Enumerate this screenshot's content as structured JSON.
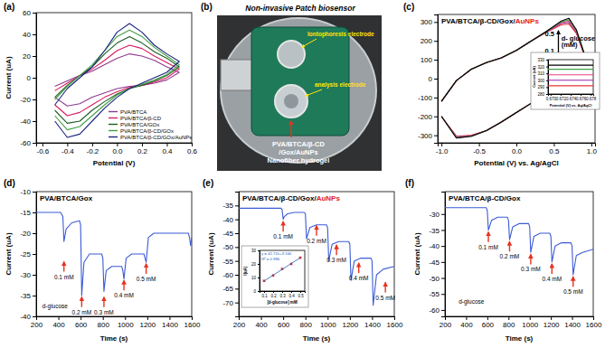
{
  "chart_data": [
    {
      "type": "line",
      "label": "(a)",
      "xlabel": "Potential (V)",
      "ylabel": "Current (uA)",
      "xlim": [
        -0.65,
        0.6
      ],
      "xticks": [
        -0.6,
        -0.4,
        -0.2,
        {
          "value": 0,
          "label": "0.0"
        },
        0.2,
        0.4,
        0.6
      ],
      "ylim": [
        -60,
        60
      ],
      "yticks": [
        -60,
        -40,
        -20,
        0,
        20,
        40,
        60
      ],
      "legend": "lower right",
      "x": [
        -0.5,
        -0.4,
        -0.3,
        -0.2,
        -0.1,
        0,
        0.1,
        0.2,
        0.3,
        0.4,
        0.5,
        0.4,
        0.3,
        0.2,
        0.1,
        0,
        -0.1,
        -0.2,
        -0.3,
        -0.4,
        -0.5
      ],
      "series": [
        {
          "name": "PVA/BTCA",
          "color": "#8e3b8e",
          "values": [
            -8,
            -3,
            2,
            6,
            12,
            18,
            22,
            20,
            16,
            10,
            5,
            -2,
            -5,
            -7,
            -8,
            -10,
            -14,
            -18,
            -24,
            -26,
            -18
          ]
        },
        {
          "name": "PVA/BTCA/β-CD",
          "color": "#d81b60",
          "values": [
            -12,
            -5,
            2,
            8,
            16,
            25,
            30,
            27,
            20,
            14,
            8,
            0,
            -4,
            -7,
            -9,
            -13,
            -18,
            -25,
            -32,
            -35,
            -25
          ]
        },
        {
          "name": "PVA/BTCA/GOx",
          "color": "#1b5e20",
          "values": [
            -18,
            -7,
            2,
            10,
            22,
            32,
            38,
            32,
            24,
            18,
            10,
            2,
            -3,
            -7,
            -10,
            -15,
            -22,
            -30,
            -40,
            -42,
            -30
          ]
        },
        {
          "name": "PVA/BTCA/β-CD/GOx",
          "color": "#43a047",
          "values": [
            -20,
            -8,
            2,
            12,
            25,
            38,
            44,
            38,
            28,
            20,
            12,
            3,
            -2,
            -6,
            -10,
            -16,
            -25,
            -35,
            -45,
            -48,
            -35
          ]
        },
        {
          "name": "PVA/BTCA/β-CD/GOx/AuNPs",
          "color": "#1a237e",
          "values": [
            -25,
            -10,
            0,
            10,
            25,
            42,
            50,
            42,
            30,
            22,
            15,
            5,
            0,
            -5,
            -10,
            -18,
            -28,
            -40,
            -52,
            -55,
            -40
          ]
        }
      ]
    },
    {
      "type": "image",
      "label": "(b)",
      "title": "Non-invasive Patch biosensor",
      "annotations": [
        "Iontophoresis electrode",
        "analysis electrode",
        "PVA/BTCA/β-CD",
        "/Gox/AuNPs",
        "Nanofiber hydrogel"
      ]
    },
    {
      "type": "line",
      "label": "(c)",
      "title": "PVA/BTCA/β-CD/Gox/AuNPs",
      "xlabel": "Potential (V) vs. Ag/AgCl",
      "xlim": [
        -1.05,
        1.05
      ],
      "xticks": [
        {
          "value": -1,
          "label": "-1.0"
        },
        -0.5,
        {
          "value": 0,
          "label": "0.0"
        },
        0.5,
        {
          "value": 1,
          "label": "1.0"
        }
      ],
      "ylim": [
        -340,
        340
      ],
      "yticks": [
        -300,
        -200,
        -100,
        0,
        100,
        200,
        300
      ],
      "x": [
        -1,
        -0.8,
        -0.6,
        -0.4,
        -0.2,
        0,
        0.2,
        0.4,
        0.6,
        0.7,
        0.8,
        0.9,
        0.8,
        0.6,
        0.4,
        0.2,
        0,
        -0.2,
        -0.4,
        -0.6,
        -0.8,
        -1
      ],
      "series": [
        {
          "color": "#e53935",
          "values": [
            -120,
            -10,
            50,
            85,
            110,
            150,
            200,
            245,
            285,
            290,
            240,
            130,
            40,
            -10,
            -70,
            -130,
            -180,
            -230,
            -275,
            -300,
            -305,
            -200
          ]
        },
        {
          "color": "#9c27b0",
          "values": [
            -120,
            -10,
            50,
            85,
            110,
            150,
            200,
            246,
            292,
            298,
            246,
            133,
            40,
            -10,
            -70,
            -130,
            -180,
            -230,
            -275,
            -302,
            -308,
            -200
          ]
        },
        {
          "color": "#ec407a",
          "values": [
            -120,
            -10,
            50,
            85,
            110,
            150,
            200,
            248,
            296,
            305,
            250,
            135,
            40,
            -10,
            -70,
            -130,
            -180,
            -230,
            -275,
            -304,
            -311,
            -200
          ]
        },
        {
          "color": "#43a047",
          "values": [
            -120,
            -10,
            50,
            85,
            110,
            150,
            200,
            250,
            300,
            312,
            255,
            138,
            40,
            -10,
            -70,
            -130,
            -180,
            -230,
            -275,
            -305,
            -313,
            -200
          ]
        },
        {
          "color": "#000000",
          "values": [
            -120,
            -10,
            50,
            85,
            110,
            150,
            200,
            250,
            305,
            320,
            260,
            140,
            40,
            -10,
            -70,
            -130,
            -180,
            -230,
            -275,
            -305,
            -315,
            -200
          ]
        }
      ],
      "notes": [
        {
          "text": "0.5",
          "x": 0.38,
          "y": 225
        },
        {
          "text": "d- glucose",
          "x": 0.6,
          "y": 200
        },
        {
          "text": "(mM)",
          "x": 0.6,
          "y": 168
        },
        {
          "text": "0.1",
          "x": 0.38,
          "y": 135
        }
      ]
    },
    {
      "type": "line",
      "xlabel": "Potential (V) vs. Ag/AgCl",
      "ylabel": "Current (uA)",
      "xlim": [
        0.6695,
        0.6785
      ],
      "xticks": [
        {
          "value": 0.67,
          "label": "0.670"
        },
        {
          "value": 0.672,
          "label": "0.672"
        },
        {
          "value": 0.674,
          "label": "0.674"
        },
        {
          "value": 0.676,
          "label": "0.676"
        },
        {
          "value": 0.678,
          "label": "0.678"
        }
      ],
      "ylim": [
        280,
        330
      ],
      "yticks": [
        280,
        290,
        300,
        310,
        320,
        330
      ],
      "x": [
        0.669,
        0.679
      ],
      "series": [
        {
          "color": "#e53935",
          "values": [
            292,
            292
          ]
        },
        {
          "color": "#9c27b0",
          "values": [
            300,
            300
          ]
        },
        {
          "color": "#ec407a",
          "values": [
            308,
            308
          ]
        },
        {
          "color": "#43a047",
          "values": [
            316,
            316
          ]
        },
        {
          "color": "#000000",
          "values": [
            322,
            322
          ]
        }
      ]
    },
    {
      "type": "line",
      "label": "(d)",
      "title": "PVA/BTCA/Gox",
      "xlabel": "Time (s)",
      "ylabel": "Current (uA)",
      "xlim": [
        200,
        1600
      ],
      "xticks": [
        200,
        400,
        600,
        800,
        1000,
        1200,
        1400,
        1600
      ],
      "ylim": [
        -40,
        -10
      ],
      "yticks": [
        -40,
        -35,
        -30,
        -25,
        -20,
        -15,
        -10
      ],
      "x": [
        200,
        420,
        440,
        450,
        470,
        520,
        590,
        600,
        610,
        630,
        680,
        790,
        800,
        810,
        830,
        880,
        970,
        980,
        990,
        1010,
        1060,
        1170,
        1180,
        1190,
        1210,
        1260,
        1570,
        1580,
        1590,
        1600
      ],
      "series": [
        {
          "color": "#3b5bd6",
          "values": [
            -15,
            -15,
            -16,
            -22,
            -19,
            -17.5,
            -17,
            -18,
            -35,
            -27,
            -25,
            -25,
            -26,
            -34,
            -29,
            -28,
            -28,
            -29,
            -31,
            -26,
            -25,
            -25,
            -26,
            -27,
            -21,
            -20,
            -20,
            -21,
            -23,
            -21
          ]
        }
      ],
      "annotations": [
        {
          "text": "0.1 mM",
          "x": 450,
          "y": -31
        },
        {
          "text": "0.2 mM",
          "x": 610,
          "y": -39.5
        },
        {
          "text": "0.3 mM",
          "x": 810,
          "y": -39.5
        },
        {
          "text": "0.4 mM",
          "x": 990,
          "y": -35.5
        },
        {
          "text": "0.5 mM",
          "x": 1190,
          "y": -31.5
        }
      ],
      "notes": [
        {
          "text": "d-glucose",
          "x": 255,
          "y": -38
        }
      ]
    },
    {
      "type": "line",
      "label": "(e)",
      "title": "PVA/BTCA/β-CD/Gox/AuNPs",
      "xlabel": "Time (s)",
      "ylabel": "Current (uA)",
      "xlim": [
        200,
        1600
      ],
      "xticks": [
        200,
        400,
        600,
        800,
        1000,
        1200,
        1400,
        1600
      ],
      "ylim": [
        -75,
        -30
      ],
      "yticks": [
        -70,
        -65,
        -60,
        -55,
        -50,
        -45,
        -40,
        -35
      ],
      "x": [
        200,
        580,
        590,
        600,
        610,
        640,
        700,
        790,
        800,
        810,
        840,
        900,
        990,
        1000,
        1010,
        1040,
        1100,
        1190,
        1200,
        1210,
        1240,
        1300,
        1390,
        1400,
        1410,
        1440,
        1500,
        1600
      ],
      "series": [
        {
          "color": "#3b5bd6",
          "values": [
            -36,
            -36,
            -36.5,
            -40,
            -39,
            -38,
            -37.5,
            -37.5,
            -38,
            -47,
            -43,
            -42,
            -42,
            -43,
            -55,
            -49,
            -48,
            -48,
            -49,
            -62,
            -55,
            -54,
            -54,
            -55,
            -71,
            -60,
            -58,
            -57
          ]
        }
      ],
      "annotations": [
        {
          "text": "0.1 mM",
          "x": 600,
          "y": -47
        },
        {
          "text": "0.2 mM",
          "x": 900,
          "y": -48.5
        },
        {
          "text": "0.3 mM",
          "x": 1080,
          "y": -55.5
        },
        {
          "text": "0.4 mM",
          "x": 1280,
          "y": -62
        },
        {
          "text": "0.5 mM",
          "x": 1520,
          "y": -69
        }
      ]
    },
    {
      "type": "scatter",
      "xlabel": "[d-glucose] mM",
      "ylabel": "I(uA)",
      "xlim": [
        0.05,
        0.55
      ],
      "xticks": [
        0.1,
        0.2,
        0.3,
        0.4,
        0.5
      ],
      "ylim": [
        0,
        30
      ],
      "yticks": [
        0,
        10,
        20,
        30
      ],
      "x": [
        0.1,
        0.2,
        0.3,
        0.4,
        0.5
      ],
      "series": [
        {
          "type": "scatter",
          "marker": "square",
          "color": "#d32f2f",
          "values": [
            7.5,
            11.5,
            16.3,
            20.0,
            24.6
          ]
        },
        {
          "type": "line",
          "color": "#1f5fbf",
          "values": [
            7.4,
            11.7,
            16.0,
            20.3,
            24.5
          ]
        }
      ],
      "annotations": [
        "y = 42.72x+3.166",
        "R² = 0.986"
      ]
    },
    {
      "type": "line",
      "label": "(f)",
      "title": "PVA/BTCA/β-CD/Gox",
      "xlabel": "Time (s)",
      "ylabel": "Current (uA)",
      "xlim": [
        200,
        1600
      ],
      "xticks": [
        200,
        400,
        600,
        800,
        1000,
        1200,
        1400,
        1600
      ],
      "ylim": [
        -62,
        -23
      ],
      "yticks": [
        -60,
        -55,
        -50,
        -45,
        -40,
        -35,
        -30
      ],
      "x": [
        200,
        590,
        600,
        610,
        640,
        700,
        790,
        800,
        810,
        840,
        900,
        990,
        1000,
        1010,
        1040,
        1100,
        1190,
        1200,
        1210,
        1240,
        1300,
        1390,
        1400,
        1410,
        1440,
        1500,
        1600
      ],
      "series": [
        {
          "color": "#3b5bd6",
          "values": [
            -28,
            -28,
            -29,
            -35,
            -32,
            -31,
            -31,
            -32,
            -38,
            -34,
            -33,
            -33,
            -34,
            -42,
            -37,
            -36,
            -36,
            -37,
            -45,
            -40,
            -39,
            -39,
            -40,
            -49,
            -43,
            -42,
            -41
          ]
        }
      ],
      "annotations": [
        {
          "text": "0.1 mM",
          "x": 610,
          "y": -41
        },
        {
          "text": "0.2 mM",
          "x": 810,
          "y": -44
        },
        {
          "text": "0.3 mM",
          "x": 1010,
          "y": -48
        },
        {
          "text": "0.4 mM",
          "x": 1210,
          "y": -51
        },
        {
          "text": "0.5 mM",
          "x": 1410,
          "y": -55
        }
      ],
      "notes": [
        {
          "text": "d-glucose",
          "x": 330,
          "y": -58
        }
      ]
    }
  ]
}
